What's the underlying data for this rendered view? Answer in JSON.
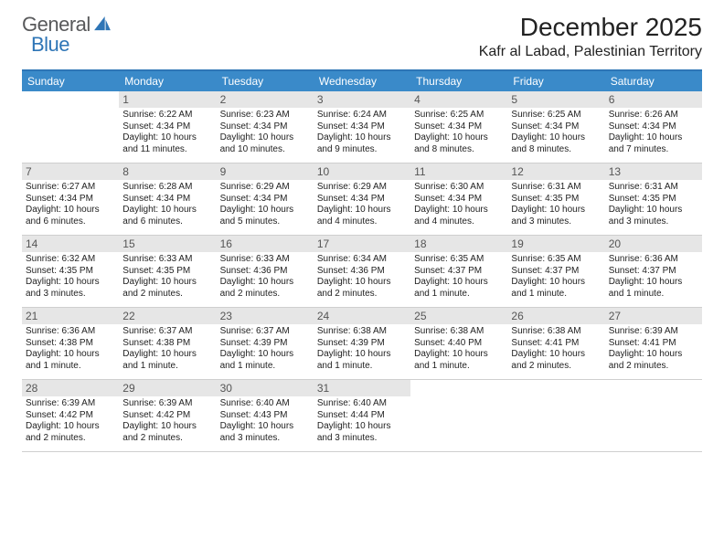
{
  "brand": {
    "part1": "General",
    "part2": "Blue"
  },
  "title": "December 2025",
  "location": "Kafr al Labad, Palestinian Territory",
  "colors": {
    "header_bg": "#3a8ac9",
    "accent_border": "#2e75b6",
    "daynum_bg": "#e6e6e6",
    "row_border": "#cfcfcf",
    "text": "#222222",
    "logo_gray": "#58595b",
    "logo_blue": "#2e75b6"
  },
  "day_headers": [
    "Sunday",
    "Monday",
    "Tuesday",
    "Wednesday",
    "Thursday",
    "Friday",
    "Saturday"
  ],
  "weeks": [
    [
      {
        "n": "",
        "sr": "",
        "ss": "",
        "dl": ""
      },
      {
        "n": "1",
        "sr": "Sunrise: 6:22 AM",
        "ss": "Sunset: 4:34 PM",
        "dl": "Daylight: 10 hours and 11 minutes."
      },
      {
        "n": "2",
        "sr": "Sunrise: 6:23 AM",
        "ss": "Sunset: 4:34 PM",
        "dl": "Daylight: 10 hours and 10 minutes."
      },
      {
        "n": "3",
        "sr": "Sunrise: 6:24 AM",
        "ss": "Sunset: 4:34 PM",
        "dl": "Daylight: 10 hours and 9 minutes."
      },
      {
        "n": "4",
        "sr": "Sunrise: 6:25 AM",
        "ss": "Sunset: 4:34 PM",
        "dl": "Daylight: 10 hours and 8 minutes."
      },
      {
        "n": "5",
        "sr": "Sunrise: 6:25 AM",
        "ss": "Sunset: 4:34 PM",
        "dl": "Daylight: 10 hours and 8 minutes."
      },
      {
        "n": "6",
        "sr": "Sunrise: 6:26 AM",
        "ss": "Sunset: 4:34 PM",
        "dl": "Daylight: 10 hours and 7 minutes."
      }
    ],
    [
      {
        "n": "7",
        "sr": "Sunrise: 6:27 AM",
        "ss": "Sunset: 4:34 PM",
        "dl": "Daylight: 10 hours and 6 minutes."
      },
      {
        "n": "8",
        "sr": "Sunrise: 6:28 AM",
        "ss": "Sunset: 4:34 PM",
        "dl": "Daylight: 10 hours and 6 minutes."
      },
      {
        "n": "9",
        "sr": "Sunrise: 6:29 AM",
        "ss": "Sunset: 4:34 PM",
        "dl": "Daylight: 10 hours and 5 minutes."
      },
      {
        "n": "10",
        "sr": "Sunrise: 6:29 AM",
        "ss": "Sunset: 4:34 PM",
        "dl": "Daylight: 10 hours and 4 minutes."
      },
      {
        "n": "11",
        "sr": "Sunrise: 6:30 AM",
        "ss": "Sunset: 4:34 PM",
        "dl": "Daylight: 10 hours and 4 minutes."
      },
      {
        "n": "12",
        "sr": "Sunrise: 6:31 AM",
        "ss": "Sunset: 4:35 PM",
        "dl": "Daylight: 10 hours and 3 minutes."
      },
      {
        "n": "13",
        "sr": "Sunrise: 6:31 AM",
        "ss": "Sunset: 4:35 PM",
        "dl": "Daylight: 10 hours and 3 minutes."
      }
    ],
    [
      {
        "n": "14",
        "sr": "Sunrise: 6:32 AM",
        "ss": "Sunset: 4:35 PM",
        "dl": "Daylight: 10 hours and 3 minutes."
      },
      {
        "n": "15",
        "sr": "Sunrise: 6:33 AM",
        "ss": "Sunset: 4:35 PM",
        "dl": "Daylight: 10 hours and 2 minutes."
      },
      {
        "n": "16",
        "sr": "Sunrise: 6:33 AM",
        "ss": "Sunset: 4:36 PM",
        "dl": "Daylight: 10 hours and 2 minutes."
      },
      {
        "n": "17",
        "sr": "Sunrise: 6:34 AM",
        "ss": "Sunset: 4:36 PM",
        "dl": "Daylight: 10 hours and 2 minutes."
      },
      {
        "n": "18",
        "sr": "Sunrise: 6:35 AM",
        "ss": "Sunset: 4:37 PM",
        "dl": "Daylight: 10 hours and 1 minute."
      },
      {
        "n": "19",
        "sr": "Sunrise: 6:35 AM",
        "ss": "Sunset: 4:37 PM",
        "dl": "Daylight: 10 hours and 1 minute."
      },
      {
        "n": "20",
        "sr": "Sunrise: 6:36 AM",
        "ss": "Sunset: 4:37 PM",
        "dl": "Daylight: 10 hours and 1 minute."
      }
    ],
    [
      {
        "n": "21",
        "sr": "Sunrise: 6:36 AM",
        "ss": "Sunset: 4:38 PM",
        "dl": "Daylight: 10 hours and 1 minute."
      },
      {
        "n": "22",
        "sr": "Sunrise: 6:37 AM",
        "ss": "Sunset: 4:38 PM",
        "dl": "Daylight: 10 hours and 1 minute."
      },
      {
        "n": "23",
        "sr": "Sunrise: 6:37 AM",
        "ss": "Sunset: 4:39 PM",
        "dl": "Daylight: 10 hours and 1 minute."
      },
      {
        "n": "24",
        "sr": "Sunrise: 6:38 AM",
        "ss": "Sunset: 4:39 PM",
        "dl": "Daylight: 10 hours and 1 minute."
      },
      {
        "n": "25",
        "sr": "Sunrise: 6:38 AM",
        "ss": "Sunset: 4:40 PM",
        "dl": "Daylight: 10 hours and 1 minute."
      },
      {
        "n": "26",
        "sr": "Sunrise: 6:38 AM",
        "ss": "Sunset: 4:41 PM",
        "dl": "Daylight: 10 hours and 2 minutes."
      },
      {
        "n": "27",
        "sr": "Sunrise: 6:39 AM",
        "ss": "Sunset: 4:41 PM",
        "dl": "Daylight: 10 hours and 2 minutes."
      }
    ],
    [
      {
        "n": "28",
        "sr": "Sunrise: 6:39 AM",
        "ss": "Sunset: 4:42 PM",
        "dl": "Daylight: 10 hours and 2 minutes."
      },
      {
        "n": "29",
        "sr": "Sunrise: 6:39 AM",
        "ss": "Sunset: 4:42 PM",
        "dl": "Daylight: 10 hours and 2 minutes."
      },
      {
        "n": "30",
        "sr": "Sunrise: 6:40 AM",
        "ss": "Sunset: 4:43 PM",
        "dl": "Daylight: 10 hours and 3 minutes."
      },
      {
        "n": "31",
        "sr": "Sunrise: 6:40 AM",
        "ss": "Sunset: 4:44 PM",
        "dl": "Daylight: 10 hours and 3 minutes."
      },
      {
        "n": "",
        "sr": "",
        "ss": "",
        "dl": ""
      },
      {
        "n": "",
        "sr": "",
        "ss": "",
        "dl": ""
      },
      {
        "n": "",
        "sr": "",
        "ss": "",
        "dl": ""
      }
    ]
  ]
}
